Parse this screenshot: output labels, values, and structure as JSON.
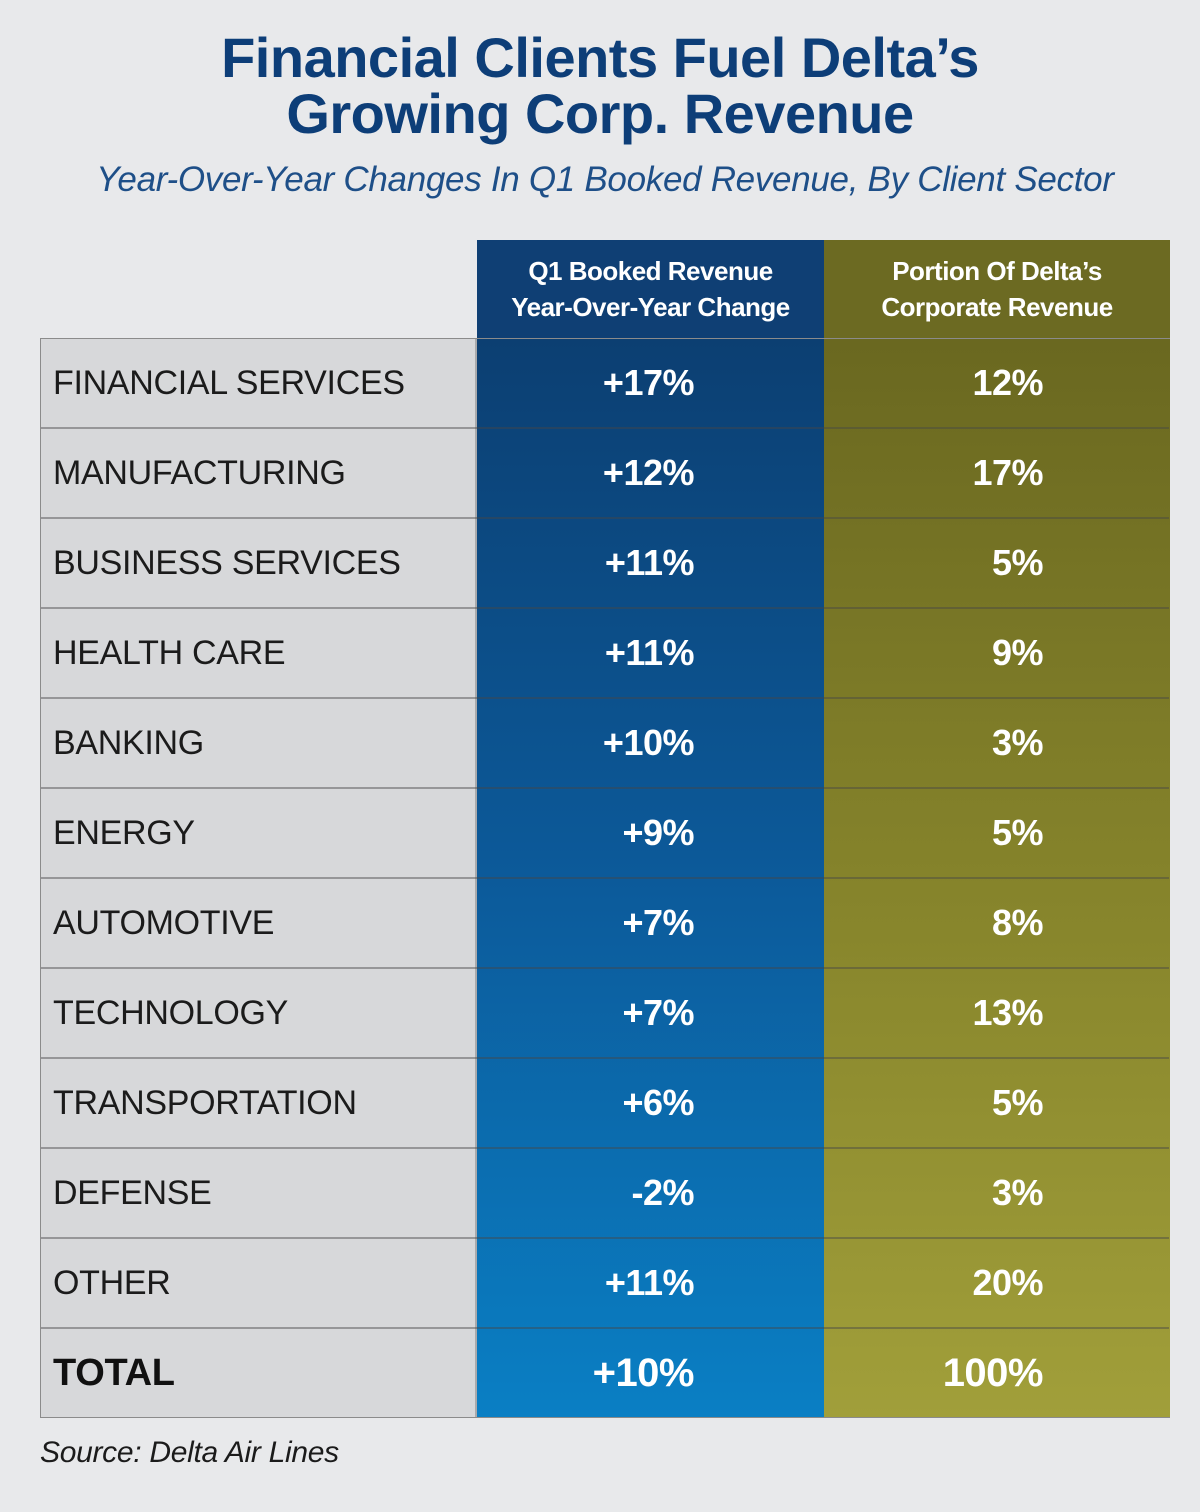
{
  "title_line1": "Financial Clients Fuel Delta’s",
  "title_line2": "Growing Corp. Revenue",
  "subtitle": "Year-Over-Year Changes In Q1 Booked Revenue, By Client Sector",
  "source": "Source: Delta Air Lines",
  "colors": {
    "title": "#0d3e78",
    "change_column": "#0c5a9a",
    "share_column": "#88862c",
    "label_column": "#d7d8da"
  },
  "chart_data": {
    "type": "table",
    "title": "Financial Clients Fuel Delta’s Growing Corp. Revenue",
    "subtitle": "Year-Over-Year Changes In Q1 Booked Revenue, By Client Sector",
    "columns": [
      {
        "line1": "Q1 Booked Revenue",
        "line2": "Year-Over-Year Change"
      },
      {
        "line1": "Portion Of Delta’s",
        "line2": "Corporate Revenue"
      }
    ],
    "rows": [
      {
        "sector": "FINANCIAL SERVICES",
        "change": "+17%",
        "share": "12%"
      },
      {
        "sector": "MANUFACTURING",
        "change": "+12%",
        "share": "17%"
      },
      {
        "sector": "BUSINESS SERVICES",
        "change": "+11%",
        "share": "5%"
      },
      {
        "sector": "HEALTH CARE",
        "change": "+11%",
        "share": "9%"
      },
      {
        "sector": "BANKING",
        "change": "+10%",
        "share": "3%"
      },
      {
        "sector": "ENERGY",
        "change": "+9%",
        "share": "5%"
      },
      {
        "sector": "AUTOMOTIVE",
        "change": "+7%",
        "share": "8%"
      },
      {
        "sector": "TECHNOLOGY",
        "change": "+7%",
        "share": "13%"
      },
      {
        "sector": "TRANSPORTATION",
        "change": "+6%",
        "share": "5%"
      },
      {
        "sector": "DEFENSE",
        "change": "-2%",
        "share": "3%"
      },
      {
        "sector": "OTHER",
        "change": "+11%",
        "share": "20%"
      }
    ],
    "total": {
      "sector": "TOTAL",
      "change": "+10%",
      "share": "100%"
    }
  }
}
